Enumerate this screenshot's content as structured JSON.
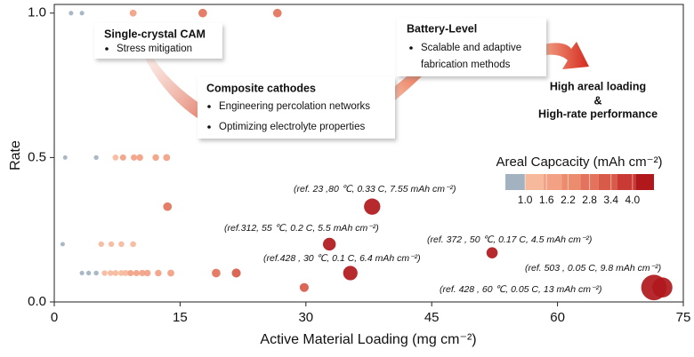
{
  "chart_data": {
    "type": "scatter",
    "x_label": "Active Material Loading (mg cm⁻²)",
    "y_label": "Rate",
    "xlim": [
      0,
      75
    ],
    "xticks": [
      0,
      15,
      30,
      45,
      60,
      75
    ],
    "ylim": [
      0,
      1.03
    ],
    "yticks": [
      {
        "value": 0,
        "label": "0.0"
      },
      0.5,
      {
        "value": 1,
        "label": "1.0"
      }
    ],
    "points": {
      "x": [
        2.0,
        3.3,
        9.4,
        17.7,
        26.6,
        1.3,
        5.0,
        7.3,
        8.2,
        9.5,
        10.2,
        12.1,
        13.4,
        13.5,
        37.9,
        1.0,
        5.6,
        6.8,
        8.0,
        9.4,
        32.8,
        52.2,
        3.3,
        4.1,
        5.0,
        6.0,
        6.7,
        7.3,
        8.0,
        8.5,
        9.1,
        9.8,
        10.5,
        11.1,
        12.4,
        13.9,
        19.3,
        21.7,
        35.3,
        29.8,
        71.5,
        72.5
      ],
      "y": [
        1,
        1,
        1,
        1,
        1,
        0.5,
        0.5,
        0.5,
        0.5,
        0.5,
        0.5,
        0.5,
        0.5,
        0.33,
        0.33,
        0.2,
        0.2,
        0.2,
        0.2,
        0.2,
        0.2,
        0.17,
        0.1,
        0.1,
        0.1,
        0.1,
        0.1,
        0.1,
        0.1,
        0.1,
        0.1,
        0.1,
        0.1,
        0.1,
        0.1,
        0.1,
        0.1,
        0.1,
        0.1,
        0.05,
        0.05,
        0.05
      ],
      "capacity": [
        0.6,
        0.6,
        2.0,
        3.0,
        3.0,
        0.5,
        0.7,
        1.4,
        1.6,
        1.6,
        1.8,
        1.8,
        2.0,
        3.0,
        7.55,
        0.5,
        1.2,
        1.2,
        1.3,
        1.4,
        5.5,
        4.5,
        0.6,
        0.7,
        0.8,
        1.2,
        1.3,
        1.4,
        1.4,
        1.5,
        1.6,
        1.6,
        1.7,
        1.8,
        1.8,
        2.0,
        3.0,
        3.2,
        6.4,
        3.2,
        13,
        9.8
      ]
    },
    "colorbar": {
      "title": "Areal Capcacity (mAh cm⁻²)",
      "clim": [
        0.45,
        4.6
      ],
      "ticks": [
        {
          "value": 1.0,
          "label": "1.0"
        },
        1.6,
        2.2,
        2.8,
        3.4,
        {
          "value": 4.0,
          "label": "4.0"
        }
      ],
      "colors": [
        "#a2b2c1",
        "#f6b99b",
        "#f2a184",
        "#ec8c6f",
        "#e3735c",
        "#d85a48",
        "#c83a33",
        "#b0181c"
      ]
    },
    "annotations": [
      "(ref. 23 ,80 ℃, 0.33 C, 7.55 mAh cm⁻²)",
      "(ref.312, 55 ℃, 0.2 C, 5.5 mAh cm⁻²)",
      "(ref.428 , 30 ℃, 0.1 C, 6.4 mAh cm⁻²)",
      "(ref. 372 , 50 ℃, 0.17 C, 4.5 mAh cm⁻²)",
      "(ref. 503 , 0.05 C, 9.8 mAh cm⁻²)",
      "(ref. 428 , 60 ℃, 0.05 C, 13 mAh cm⁻²)"
    ],
    "callouts": [
      {
        "title": "Single-crystal CAM",
        "lines": [
          "Stress mitigation"
        ]
      },
      {
        "title": "Composite cathodes",
        "lines": [
          "Engineering percolation networks",
          "Optimizing electrolyte properties"
        ]
      },
      {
        "title": "Battery-Level",
        "lines": [
          "Scalable and adaptive",
          "fabrication methods"
        ]
      },
      {
        "title": "High areal loading",
        "lines": [
          "&",
          "High-rate performance"
        ]
      }
    ]
  }
}
